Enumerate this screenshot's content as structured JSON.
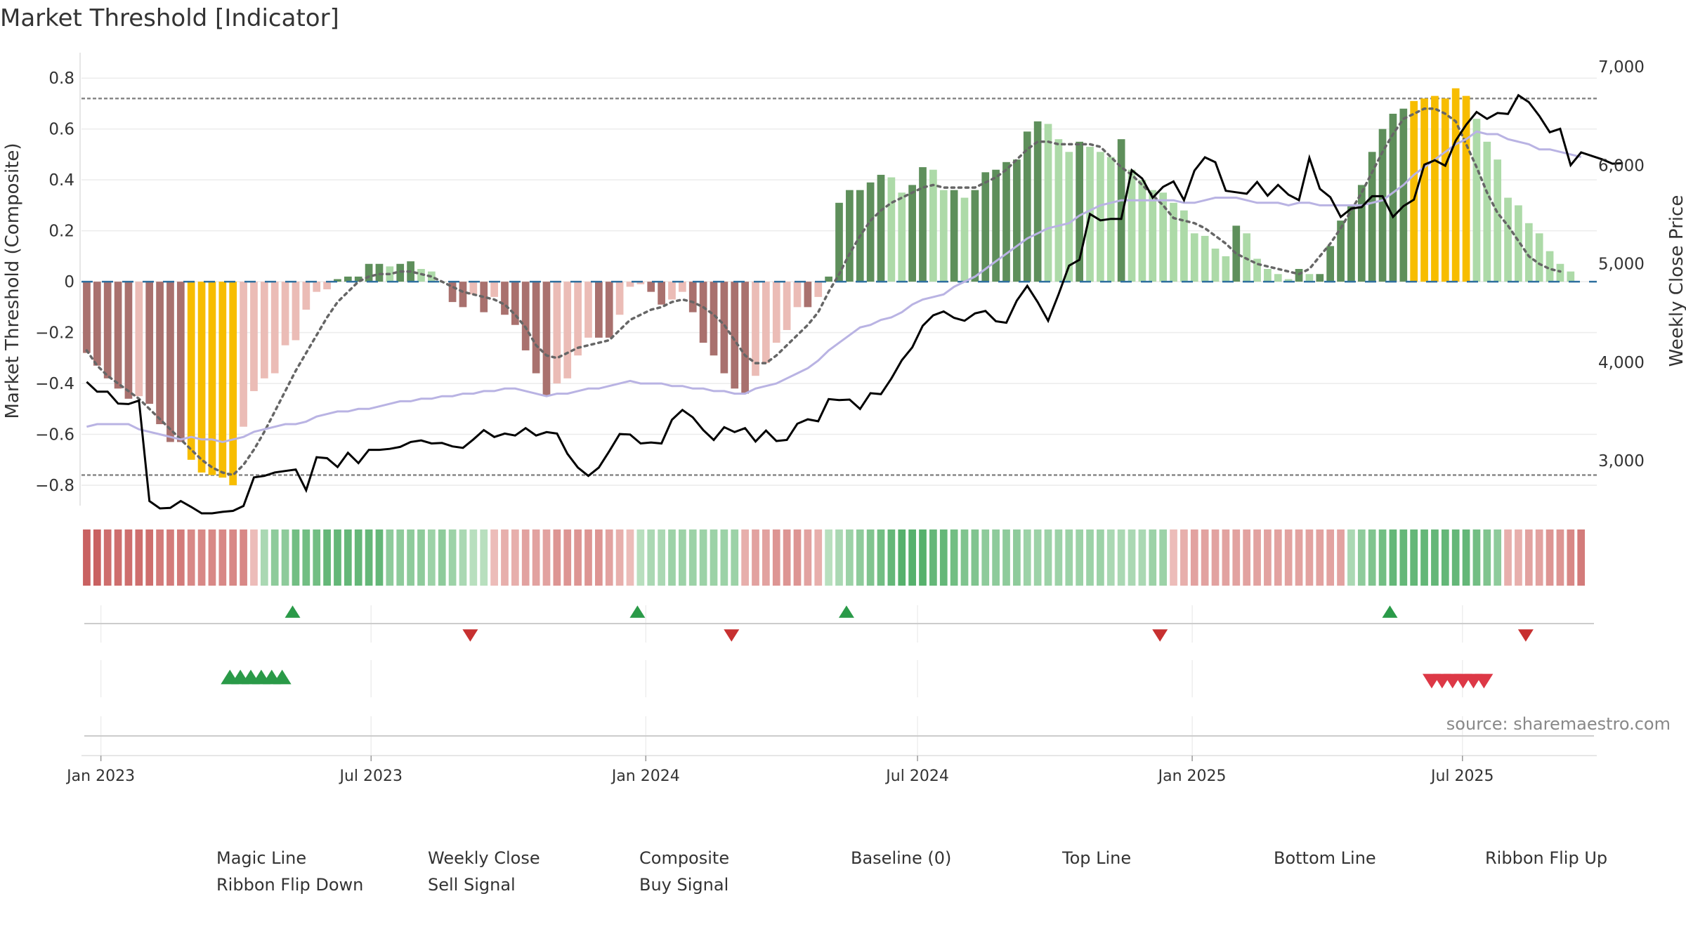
{
  "chart_title": "Market Threshold [Indicator]",
  "source": "source: sharemaestro.com",
  "colors": {
    "weekly_close": "#000000",
    "composite": "#b9b3e3",
    "magic_line": "#666666",
    "baseline": "#2e6f9e",
    "top_bottom": "#888888",
    "neg_dark": "#a9716e",
    "neg_light": "#ebbcb6",
    "pos_dark": "#5e8f5b",
    "pos_light": "#addaa8",
    "extreme": "#f7bd00",
    "flip_up": "#2a9a48",
    "flip_down": "#c73030",
    "sell": "#dd3846",
    "buy": "#2a9a48"
  },
  "chart_data": {
    "type": "bar",
    "title": "Market Threshold [Indicator]",
    "x_ticks": [
      "Jan 2023",
      "Jul 2023",
      "Jan 2024",
      "Jul 2024",
      "Jan 2025",
      "Jul 2025"
    ],
    "x_range": [
      "2022-12-19",
      "2025-09-29"
    ],
    "left_axis": {
      "label": "Market Threshold (Composite)",
      "ylim": [
        -0.88,
        0.9
      ],
      "ticks": [
        -0.8,
        -0.6,
        -0.4,
        -0.2,
        0,
        0.2,
        0.4,
        0.6,
        0.8
      ],
      "tick_labels": [
        "−0.8",
        "−0.6",
        "−0.4",
        "−0.2",
        "0",
        "0.2",
        "0.4",
        "0.6",
        "0.8"
      ]
    },
    "right_axis": {
      "label": "Weekly Close Price",
      "ticks": [
        3000,
        4000,
        5000,
        6000,
        7000
      ],
      "tick_labels": [
        "3,000",
        "4,000",
        "5,000",
        "6,000",
        "7,000"
      ]
    },
    "reference_lines": {
      "top_line": 0.72,
      "bottom_line": -0.76,
      "baseline": 0
    },
    "bar_start_date": "2022-12-19",
    "bar_interval_days": 7,
    "composite_bars": [
      -0.28,
      -0.33,
      -0.38,
      -0.42,
      -0.46,
      -0.45,
      -0.48,
      -0.56,
      -0.63,
      -0.63,
      -0.7,
      -0.75,
      -0.76,
      -0.77,
      -0.8,
      -0.57,
      -0.43,
      -0.38,
      -0.36,
      -0.25,
      -0.23,
      -0.11,
      -0.04,
      -0.03,
      0.01,
      0.02,
      0.02,
      0.07,
      0.07,
      0.06,
      0.07,
      0.08,
      0.05,
      0.04,
      0.0,
      -0.08,
      -0.1,
      -0.05,
      -0.12,
      -0.06,
      -0.13,
      -0.17,
      -0.27,
      -0.36,
      -0.45,
      -0.4,
      -0.38,
      -0.29,
      -0.22,
      -0.22,
      -0.22,
      -0.13,
      -0.02,
      -0.01,
      -0.04,
      -0.09,
      -0.07,
      -0.04,
      -0.12,
      -0.24,
      -0.29,
      -0.36,
      -0.42,
      -0.44,
      -0.37,
      -0.32,
      -0.24,
      -0.19,
      -0.1,
      -0.1,
      -0.06,
      0.02,
      0.31,
      0.36,
      0.36,
      0.39,
      0.42,
      0.41,
      0.35,
      0.38,
      0.45,
      0.44,
      0.36,
      0.36,
      0.33,
      0.36,
      0.43,
      0.44,
      0.47,
      0.48,
      0.59,
      0.63,
      0.62,
      0.56,
      0.51,
      0.55,
      0.53,
      0.51,
      0.49,
      0.56,
      0.44,
      0.4,
      0.36,
      0.35,
      0.31,
      0.28,
      0.19,
      0.18,
      0.13,
      0.1,
      0.22,
      0.19,
      0.09,
      0.05,
      0.03,
      0.01,
      0.05,
      0.03,
      0.03,
      0.14,
      0.24,
      0.3,
      0.38,
      0.51,
      0.6,
      0.66,
      0.68,
      0.71,
      0.72,
      0.73,
      0.72,
      0.76,
      0.73,
      0.64,
      0.55,
      0.48,
      0.33,
      0.3,
      0.23,
      0.19,
      0.12,
      0.07,
      0.04
    ],
    "weekly_close": [
      3800,
      3700,
      3700,
      3580,
      3575,
      3610,
      2590,
      2515,
      2520,
      2590,
      2530,
      2465,
      2465,
      2480,
      2490,
      2540,
      2830,
      2845,
      2880,
      2895,
      2910,
      2700,
      3035,
      3025,
      2935,
      3080,
      2975,
      3110,
      3110,
      3120,
      3140,
      3190,
      3205,
      3175,
      3180,
      3145,
      3130,
      3215,
      3310,
      3240,
      3275,
      3255,
      3330,
      3255,
      3290,
      3275,
      3070,
      2930,
      2845,
      2930,
      3095,
      3270,
      3265,
      3175,
      3185,
      3175,
      3415,
      3515,
      3440,
      3310,
      3210,
      3340,
      3290,
      3330,
      3195,
      3305,
      3200,
      3210,
      3375,
      3420,
      3400,
      3625,
      3615,
      3620,
      3525,
      3685,
      3675,
      3835,
      4020,
      4150,
      4370,
      4475,
      4515,
      4450,
      4420,
      4495,
      4520,
      4415,
      4400,
      4625,
      4775,
      4610,
      4420,
      4690,
      4980,
      5040,
      5505,
      5440,
      5455,
      5455,
      5950,
      5865,
      5670,
      5780,
      5835,
      5645,
      5945,
      6080,
      6030,
      5740,
      5725,
      5710,
      5830,
      5690,
      5800,
      5700,
      5645,
      6075,
      5760,
      5675,
      5475,
      5560,
      5575,
      5685,
      5685,
      5475,
      5585,
      5650,
      6005,
      6050,
      5995,
      6250,
      6410,
      6540,
      6470,
      6530,
      6520,
      6710,
      6640,
      6500,
      6335,
      6370,
      6000,
      6130,
      6095,
      6060,
      6015,
      6020
    ],
    "composite_line": [
      -0.57,
      -0.56,
      -0.56,
      -0.56,
      -0.56,
      -0.58,
      -0.59,
      -0.6,
      -0.61,
      -0.62,
      -0.61,
      -0.62,
      -0.62,
      -0.63,
      -0.62,
      -0.61,
      -0.59,
      -0.58,
      -0.57,
      -0.56,
      -0.56,
      -0.55,
      -0.53,
      -0.52,
      -0.51,
      -0.51,
      -0.5,
      -0.5,
      -0.49,
      -0.48,
      -0.47,
      -0.47,
      -0.46,
      -0.46,
      -0.45,
      -0.45,
      -0.44,
      -0.44,
      -0.43,
      -0.43,
      -0.42,
      -0.42,
      -0.43,
      -0.44,
      -0.45,
      -0.44,
      -0.44,
      -0.43,
      -0.42,
      -0.42,
      -0.41,
      -0.4,
      -0.39,
      -0.4,
      -0.4,
      -0.4,
      -0.41,
      -0.41,
      -0.42,
      -0.42,
      -0.43,
      -0.43,
      -0.44,
      -0.44,
      -0.42,
      -0.41,
      -0.4,
      -0.38,
      -0.36,
      -0.34,
      -0.31,
      -0.27,
      -0.24,
      -0.21,
      -0.18,
      -0.17,
      -0.15,
      -0.14,
      -0.12,
      -0.09,
      -0.07,
      -0.06,
      -0.05,
      -0.02,
      0.0,
      0.02,
      0.05,
      0.08,
      0.11,
      0.14,
      0.17,
      0.19,
      0.21,
      0.22,
      0.23,
      0.26,
      0.28,
      0.3,
      0.31,
      0.32,
      0.32,
      0.32,
      0.32,
      0.32,
      0.32,
      0.31,
      0.31,
      0.32,
      0.33,
      0.33,
      0.33,
      0.32,
      0.31,
      0.31,
      0.31,
      0.3,
      0.31,
      0.31,
      0.3,
      0.3,
      0.3,
      0.3,
      0.3,
      0.31,
      0.32,
      0.35,
      0.38,
      0.42,
      0.45,
      0.48,
      0.51,
      0.54,
      0.56,
      0.59,
      0.58,
      0.58,
      0.56,
      0.55,
      0.54,
      0.52,
      0.52,
      0.51,
      0.5,
      0.49
    ],
    "magic_line": [
      -0.27,
      -0.33,
      -0.37,
      -0.4,
      -0.43,
      -0.46,
      -0.5,
      -0.54,
      -0.58,
      -0.62,
      -0.66,
      -0.7,
      -0.73,
      -0.75,
      -0.76,
      -0.72,
      -0.66,
      -0.59,
      -0.51,
      -0.43,
      -0.35,
      -0.28,
      -0.21,
      -0.14,
      -0.08,
      -0.04,
      0.0,
      0.02,
      0.03,
      0.03,
      0.04,
      0.04,
      0.03,
      0.02,
      0.0,
      -0.02,
      -0.04,
      -0.05,
      -0.06,
      -0.07,
      -0.09,
      -0.13,
      -0.18,
      -0.25,
      -0.29,
      -0.3,
      -0.28,
      -0.26,
      -0.25,
      -0.24,
      -0.23,
      -0.19,
      -0.15,
      -0.13,
      -0.11,
      -0.1,
      -0.08,
      -0.07,
      -0.08,
      -0.1,
      -0.13,
      -0.17,
      -0.23,
      -0.29,
      -0.32,
      -0.32,
      -0.29,
      -0.25,
      -0.21,
      -0.17,
      -0.12,
      -0.04,
      0.03,
      0.11,
      0.18,
      0.24,
      0.28,
      0.31,
      0.33,
      0.35,
      0.37,
      0.38,
      0.37,
      0.37,
      0.37,
      0.37,
      0.39,
      0.41,
      0.44,
      0.48,
      0.52,
      0.55,
      0.55,
      0.54,
      0.54,
      0.54,
      0.54,
      0.53,
      0.49,
      0.45,
      0.42,
      0.38,
      0.34,
      0.3,
      0.25,
      0.24,
      0.23,
      0.21,
      0.18,
      0.15,
      0.11,
      0.09,
      0.07,
      0.06,
      0.05,
      0.04,
      0.03,
      0.05,
      0.1,
      0.15,
      0.21,
      0.28,
      0.35,
      0.43,
      0.51,
      0.58,
      0.64,
      0.66,
      0.68,
      0.68,
      0.66,
      0.63,
      0.54,
      0.45,
      0.35,
      0.27,
      0.22,
      0.16,
      0.1,
      0.07,
      0.05,
      0.04
    ],
    "ribbon": [
      -0.9,
      -0.9,
      -0.8,
      -0.8,
      -0.8,
      -0.8,
      -0.8,
      -0.7,
      -0.7,
      -0.7,
      -0.6,
      -0.6,
      -0.6,
      -0.6,
      -0.6,
      -0.6,
      -0.2,
      0.3,
      0.5,
      0.5,
      0.7,
      0.7,
      0.7,
      0.8,
      0.8,
      0.8,
      0.8,
      0.8,
      0.8,
      0.5,
      0.5,
      0.5,
      0.5,
      0.4,
      0.5,
      0.4,
      0.3,
      0.2,
      0.2,
      -0.2,
      -0.3,
      -0.3,
      -0.4,
      -0.4,
      -0.4,
      -0.5,
      -0.5,
      -0.5,
      -0.5,
      -0.5,
      -0.4,
      -0.3,
      -0.2,
      0.2,
      0.3,
      0.3,
      0.4,
      0.4,
      0.4,
      0.4,
      0.4,
      0.4,
      0.4,
      -0.3,
      -0.4,
      -0.4,
      -0.5,
      -0.5,
      -0.5,
      -0.4,
      -0.3,
      0.2,
      0.3,
      0.4,
      0.5,
      0.6,
      0.7,
      0.8,
      0.9,
      0.9,
      0.9,
      0.8,
      0.8,
      0.7,
      0.6,
      0.6,
      0.5,
      0.5,
      0.5,
      0.5,
      0.4,
      0.4,
      0.4,
      0.4,
      0.4,
      0.4,
      0.4,
      0.4,
      0.3,
      0.3,
      0.3,
      0.3,
      0.4,
      0.4,
      -0.2,
      -0.3,
      -0.4,
      -0.4,
      -0.4,
      -0.4,
      -0.4,
      -0.4,
      -0.4,
      -0.4,
      -0.4,
      -0.4,
      -0.4,
      -0.4,
      -0.4,
      -0.4,
      -0.4,
      0.3,
      0.5,
      0.6,
      0.7,
      0.8,
      0.8,
      0.8,
      0.8,
      0.8,
      0.8,
      0.8,
      0.8,
      0.7,
      0.6,
      0.5,
      -0.3,
      -0.3,
      -0.4,
      -0.4,
      -0.5,
      -0.5,
      -0.6,
      -0.7
    ],
    "signals": {
      "ribbon_flip_up": [
        "2023-05-08",
        "2023-12-25",
        "2024-05-13",
        "2025-05-12"
      ],
      "ribbon_flip_down": [
        "2023-09-04",
        "2024-02-26",
        "2024-12-09",
        "2025-08-11"
      ],
      "buy": [
        "2023-03-27",
        "2023-04-03",
        "2023-04-10",
        "2023-04-17",
        "2023-04-24",
        "2023-05-01"
      ],
      "sell": [
        "2025-06-09",
        "2025-06-16",
        "2025-06-23",
        "2025-06-30",
        "2025-07-07",
        "2025-07-14"
      ]
    }
  },
  "legend": [
    {
      "label": "Magic Line",
      "key": "magic"
    },
    {
      "label": "Weekly Close",
      "key": "close"
    },
    {
      "label": "Composite",
      "key": "composite"
    },
    {
      "label": "Baseline (0)",
      "key": "baseline"
    },
    {
      "label": "Top Line",
      "key": "top"
    },
    {
      "label": "Bottom Line",
      "key": "bottom"
    },
    {
      "label": "Ribbon Flip Up",
      "key": "flipup"
    },
    {
      "label": "Ribbon Flip Down",
      "key": "flipdown"
    },
    {
      "label": "Sell Signal",
      "key": "sell"
    },
    {
      "label": "Buy Signal",
      "key": "buy"
    }
  ]
}
